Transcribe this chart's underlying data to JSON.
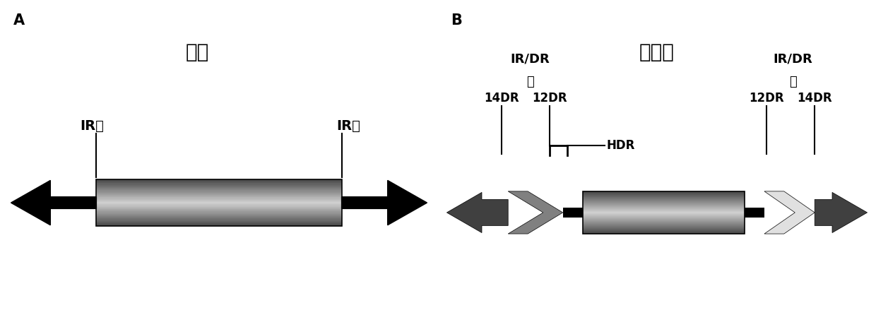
{
  "panel_A_title": "水手",
  "panel_B_title": "睡美人",
  "label_A": "A",
  "label_B": "B",
  "ir_left_A": "IR左",
  "ir_right_A": "IR右",
  "irdr_left_B_line1": "IR/DR",
  "irdr_left_B_line2": "左",
  "irdr_right_B_line1": "IR/DR",
  "irdr_right_B_line2": "右",
  "label_14dr_left": "14DR",
  "label_12dr_left": "12DR",
  "label_12dr_right": "12DR",
  "label_14dr_right": "14DR",
  "label_hdr": "HDR",
  "bg_color": "#ffffff",
  "dark_gray": "#404040",
  "medium_gray": "#808080",
  "light_gray": "#c0c0c0",
  "very_light_gray": "#e0e0e0",
  "black": "#000000",
  "figsize": [
    12.4,
    4.63
  ],
  "dpi": 100
}
